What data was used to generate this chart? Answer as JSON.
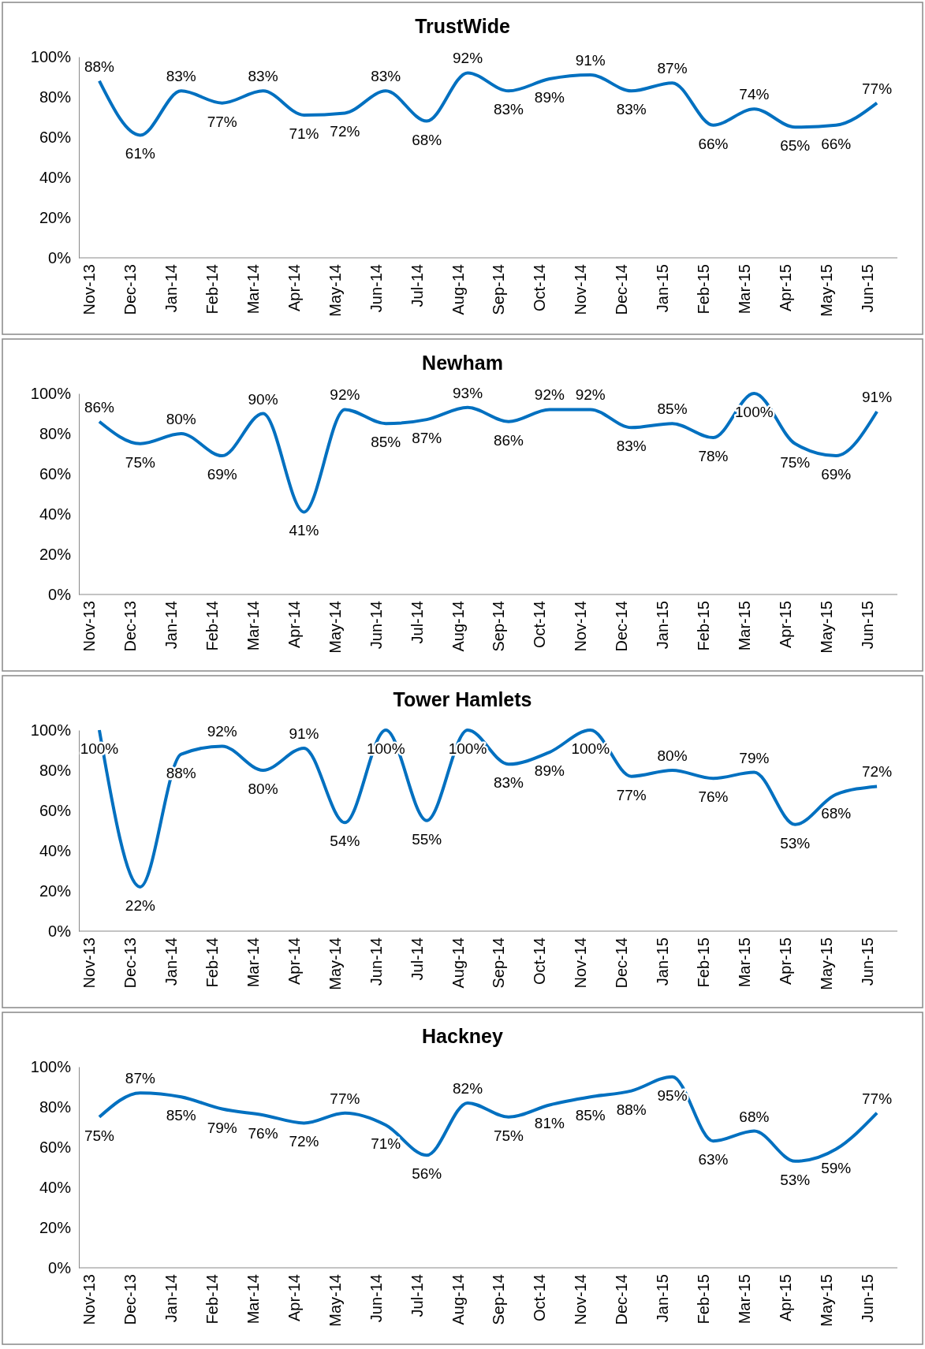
{
  "chart_data": [
    {
      "type": "line",
      "title": "TrustWide",
      "categories": [
        "Nov-13",
        "Dec-13",
        "Jan-14",
        "Feb-14",
        "Mar-14",
        "Apr-14",
        "May-14",
        "Jun-14",
        "Jul-14",
        "Aug-14",
        "Sep-14",
        "Oct-14",
        "Nov-14",
        "Dec-14",
        "Jan-15",
        "Feb-15",
        "Mar-15",
        "Apr-15",
        "May-15",
        "Jun-15"
      ],
      "series": [
        {
          "color": "#0070c0",
          "values": [
            88,
            61,
            83,
            77,
            83,
            71,
            72,
            83,
            68,
            92,
            83,
            89,
            91,
            83,
            87,
            66,
            74,
            65,
            66,
            77
          ],
          "value_labels": [
            "88%",
            "61%",
            "83%",
            "77%",
            "83%",
            "71%",
            "72%",
            "83%",
            "68%",
            "92%",
            "83%",
            "89%",
            "91%",
            "83%",
            "87%",
            "66%",
            "74%",
            "65%",
            "66%",
            "77%"
          ]
        }
      ],
      "ylim": [
        0,
        100
      ],
      "yticks": [
        {
          "value": 0,
          "label": "0%"
        },
        {
          "value": 20,
          "label": "20%"
        },
        {
          "value": 40,
          "label": "40%"
        },
        {
          "value": 60,
          "label": "60%"
        },
        {
          "value": 80,
          "label": "80%"
        },
        {
          "value": 100,
          "label": "100%"
        }
      ],
      "grid": false,
      "marker": "none"
    },
    {
      "type": "line",
      "title": "Newham",
      "categories": [
        "Nov-13",
        "Dec-13",
        "Jan-14",
        "Feb-14",
        "Mar-14",
        "Apr-14",
        "May-14",
        "Jun-14",
        "Jul-14",
        "Aug-14",
        "Sep-14",
        "Oct-14",
        "Nov-14",
        "Dec-14",
        "Jan-15",
        "Feb-15",
        "Mar-15",
        "Apr-15",
        "May-15",
        "Jun-15"
      ],
      "series": [
        {
          "color": "#0070c0",
          "values": [
            86,
            75,
            80,
            69,
            90,
            41,
            92,
            85,
            87,
            93,
            86,
            92,
            92,
            83,
            85,
            78,
            100,
            75,
            69,
            91
          ],
          "value_labels": [
            "86%",
            "75%",
            "80%",
            "69%",
            "90%",
            "41%",
            "92%",
            "85%",
            "87%",
            "93%",
            "86%",
            "92%",
            "92%",
            "83%",
            "85%",
            "78%",
            "100%",
            "75%",
            "69%",
            "91%"
          ]
        }
      ],
      "ylim": [
        0,
        100
      ],
      "yticks": [
        {
          "value": 0,
          "label": "0%"
        },
        {
          "value": 20,
          "label": "20%"
        },
        {
          "value": 40,
          "label": "40%"
        },
        {
          "value": 60,
          "label": "60%"
        },
        {
          "value": 80,
          "label": "80%"
        },
        {
          "value": 100,
          "label": "100%"
        }
      ],
      "grid": false,
      "marker": "none"
    },
    {
      "type": "line",
      "title": "Tower Hamlets",
      "categories": [
        "Nov-13",
        "Dec-13",
        "Jan-14",
        "Feb-14",
        "Mar-14",
        "Apr-14",
        "May-14",
        "Jun-14",
        "Jul-14",
        "Aug-14",
        "Sep-14",
        "Oct-14",
        "Nov-14",
        "Dec-14",
        "Jan-15",
        "Feb-15",
        "Mar-15",
        "Apr-15",
        "May-15",
        "Jun-15"
      ],
      "series": [
        {
          "color": "#0070c0",
          "values": [
            100,
            22,
            88,
            92,
            80,
            91,
            54,
            100,
            55,
            100,
            83,
            89,
            100,
            77,
            80,
            76,
            79,
            53,
            68,
            72
          ],
          "value_labels": [
            "100%",
            "22%",
            "88%",
            "92%",
            "80%",
            "91%",
            "54%",
            "100%",
            "55%",
            "100%",
            "83%",
            "89%",
            "100%",
            "77%",
            "80%",
            "76%",
            "79%",
            "53%",
            "68%",
            "72%"
          ]
        }
      ],
      "ylim": [
        0,
        100
      ],
      "yticks": [
        {
          "value": 0,
          "label": "0%"
        },
        {
          "value": 20,
          "label": "20%"
        },
        {
          "value": 40,
          "label": "40%"
        },
        {
          "value": 60,
          "label": "60%"
        },
        {
          "value": 80,
          "label": "80%"
        },
        {
          "value": 100,
          "label": "100%"
        }
      ],
      "grid": false,
      "marker": "none"
    },
    {
      "type": "line",
      "title": "Hackney",
      "categories": [
        "Nov-13",
        "Dec-13",
        "Jan-14",
        "Feb-14",
        "Mar-14",
        "Apr-14",
        "May-14",
        "Jun-14",
        "Jul-14",
        "Aug-14",
        "Sep-14",
        "Oct-14",
        "Nov-14",
        "Dec-14",
        "Jan-15",
        "Feb-15",
        "Mar-15",
        "Apr-15",
        "May-15",
        "Jun-15"
      ],
      "series": [
        {
          "color": "#0070c0",
          "values": [
            75,
            87,
            85,
            79,
            76,
            72,
            77,
            71,
            56,
            82,
            75,
            81,
            85,
            88,
            95,
            63,
            68,
            53,
            59,
            77
          ],
          "value_labels": [
            "75%",
            "87%",
            "85%",
            "79%",
            "76%",
            "72%",
            "77%",
            "71%",
            "56%",
            "82%",
            "75%",
            "81%",
            "85%",
            "88%",
            "95%",
            "63%",
            "68%",
            "53%",
            "59%",
            "77%"
          ]
        }
      ],
      "ylim": [
        0,
        100
      ],
      "yticks": [
        {
          "value": 0,
          "label": "0%"
        },
        {
          "value": 20,
          "label": "20%"
        },
        {
          "value": 40,
          "label": "40%"
        },
        {
          "value": 60,
          "label": "60%"
        },
        {
          "value": 80,
          "label": "80%"
        },
        {
          "value": 100,
          "label": "100%"
        }
      ],
      "grid": false,
      "marker": "none"
    }
  ]
}
